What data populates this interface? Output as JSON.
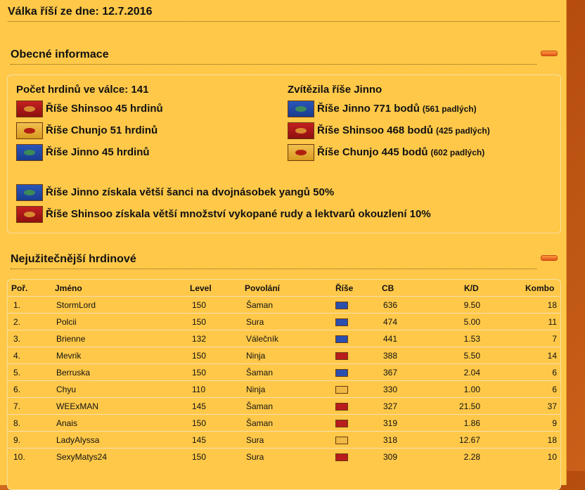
{
  "title": "Válka říší ze dne: 12.7.2016",
  "general": {
    "heading": "Obecné informace",
    "heroes_total": "Počet hrdinů ve válce: 141",
    "heroes": [
      {
        "flag": "shinsoo",
        "text": "Říše Shinsoo 45 hrdinů"
      },
      {
        "flag": "chunjo",
        "text": "Říše Chunjo 51 hrdinů"
      },
      {
        "flag": "jinno",
        "text": "Říše Jinno 45 hrdinů"
      }
    ],
    "winner": "Zvítězila říše Jinno",
    "results": [
      {
        "flag": "jinno",
        "text": "Říše Jinno 771 bodů",
        "fallen": "(561 padlých)"
      },
      {
        "flag": "shinsoo",
        "text": "Říše Shinsoo 468 bodů",
        "fallen": "(425 padlých)"
      },
      {
        "flag": "chunjo",
        "text": "Říše Chunjo 445 bodů",
        "fallen": "(602 padlých)"
      }
    ],
    "bonuses": [
      {
        "flag": "jinno",
        "text": "Říše Jinno získala větší šanci na dvojnásobek yangů 50%"
      },
      {
        "flag": "shinsoo",
        "text": "Říše Shinsoo získala větší množství vykopané rudy a lektvarů okouzlení 10%"
      }
    ]
  },
  "heroes_table": {
    "heading": "Nejužitečnější hrdinové",
    "columns": {
      "rank": "Poř.",
      "name": "Jméno",
      "level": "Level",
      "job": "Povolání",
      "empire": "Říše",
      "cb": "CB",
      "kd": "K/D",
      "combo": "Kombo"
    },
    "rows": [
      {
        "rank": "1.",
        "name": "StormLord",
        "level": "150",
        "job": "Šaman",
        "empire": "jinno",
        "cb": "636",
        "kd": "9.50",
        "combo": "18"
      },
      {
        "rank": "2.",
        "name": "Polcii",
        "level": "150",
        "job": "Sura",
        "empire": "jinno",
        "cb": "474",
        "kd": "5.00",
        "combo": "11"
      },
      {
        "rank": "3.",
        "name": "Brienne",
        "level": "132",
        "job": "Válečník",
        "empire": "jinno",
        "cb": "441",
        "kd": "1.53",
        "combo": "7"
      },
      {
        "rank": "4.",
        "name": "Mevrik",
        "level": "150",
        "job": "Ninja",
        "empire": "shinsoo",
        "cb": "388",
        "kd": "5.50",
        "combo": "14"
      },
      {
        "rank": "5.",
        "name": "Berruska",
        "level": "150",
        "job": "Šaman",
        "empire": "jinno",
        "cb": "367",
        "kd": "2.04",
        "combo": "6"
      },
      {
        "rank": "6.",
        "name": "Chyu",
        "level": "110",
        "job": "Ninja",
        "empire": "chunjo",
        "cb": "330",
        "kd": "1.00",
        "combo": "6"
      },
      {
        "rank": "7.",
        "name": "WEExMAN",
        "level": "145",
        "job": "Šaman",
        "empire": "shinsoo",
        "cb": "327",
        "kd": "21.50",
        "combo": "37"
      },
      {
        "rank": "8.",
        "name": "Anais",
        "level": "150",
        "job": "Šaman",
        "empire": "shinsoo",
        "cb": "319",
        "kd": "1.86",
        "combo": "9"
      },
      {
        "rank": "9.",
        "name": "LadyAlyssa",
        "level": "145",
        "job": "Sura",
        "empire": "chunjo",
        "cb": "318",
        "kd": "12.67",
        "combo": "18"
      },
      {
        "rank": "10.",
        "name": "SexyMatys24",
        "level": "150",
        "job": "Sura",
        "empire": "shinsoo",
        "cb": "309",
        "kd": "2.28",
        "combo": "10"
      }
    ]
  }
}
